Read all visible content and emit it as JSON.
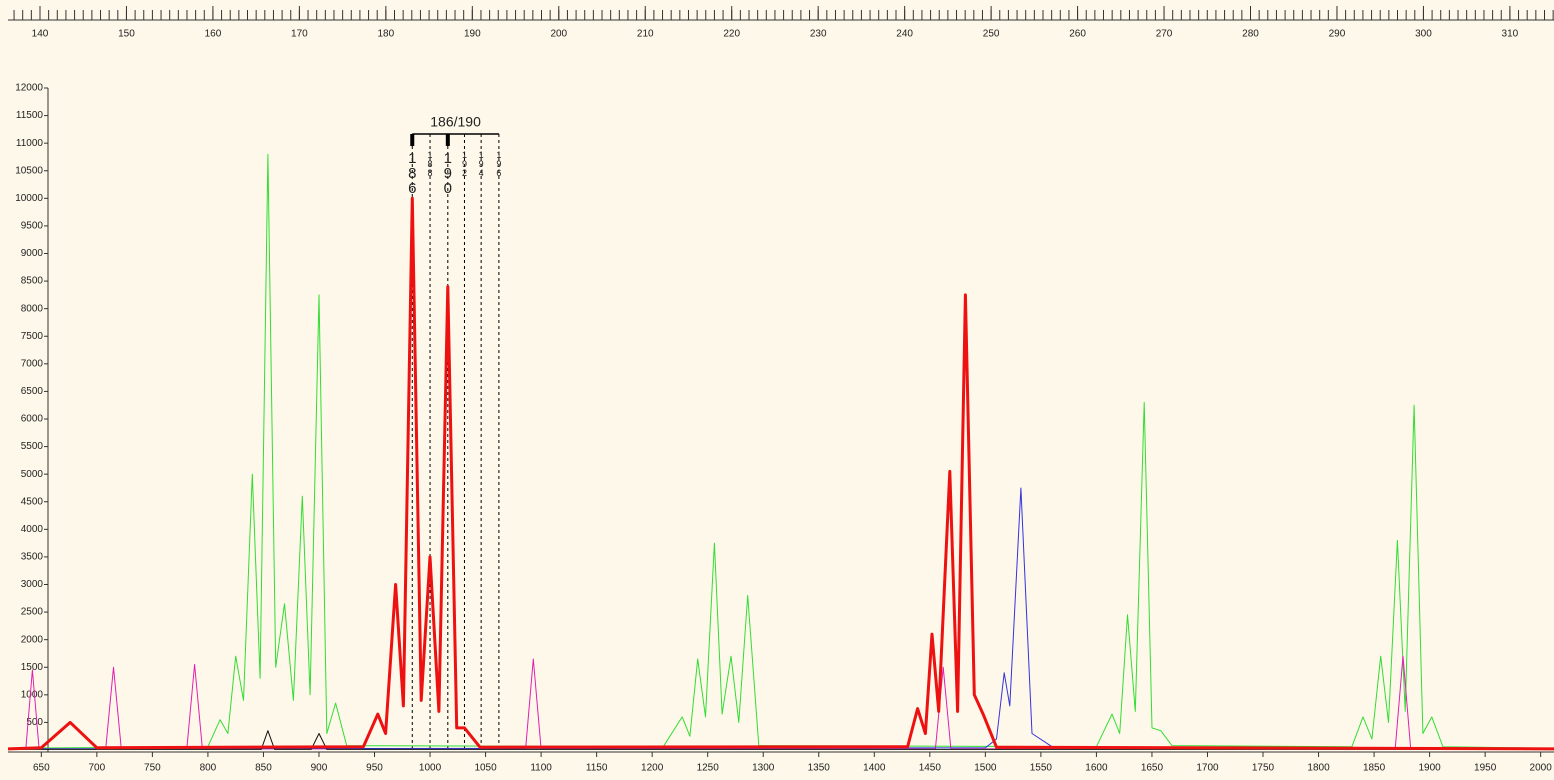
{
  "chart_data": {
    "type": "line",
    "size_ruler": {
      "xlim": [
        136.3,
        315.1
      ],
      "xticks": [
        140,
        150,
        160,
        170,
        180,
        190,
        200,
        210,
        220,
        230,
        240,
        250,
        260,
        270,
        280,
        290,
        300,
        310
      ]
    },
    "xlim": [
      620,
      2012
    ],
    "xticks": [
      650,
      700,
      750,
      800,
      850,
      900,
      950,
      1000,
      1050,
      1100,
      1150,
      1200,
      1250,
      1300,
      1350,
      1400,
      1450,
      1500,
      1550,
      1600,
      1650,
      1700,
      1750,
      1800,
      1850,
      1900,
      1950,
      2000
    ],
    "ylim": [
      0,
      12000
    ],
    "yticks": [
      500,
      1000,
      1500,
      2000,
      2500,
      3000,
      3500,
      4000,
      4500,
      5000,
      5500,
      6000,
      6500,
      7000,
      7500,
      8000,
      8500,
      9000,
      9500,
      10000,
      10500,
      11000,
      11500,
      12000
    ],
    "genotype": "186/190",
    "bins": [
      {
        "label": "186",
        "x": 984,
        "called": true
      },
      {
        "label": "188",
        "x": 1000,
        "called": false
      },
      {
        "label": "190",
        "x": 1016,
        "called": true
      },
      {
        "label": "192",
        "x": 1031,
        "called": false
      },
      {
        "label": "194",
        "x": 1046,
        "called": false
      },
      {
        "label": "196",
        "x": 1062,
        "called": false
      }
    ],
    "series": [
      {
        "color": "#33dd33",
        "width": 1,
        "x": [
          620,
          800,
          811,
          818,
          825,
          832,
          840,
          847,
          854,
          861,
          869,
          877,
          885,
          892,
          900,
          907,
          915,
          925,
          1210,
          1227,
          1234,
          1241,
          1248,
          1256,
          1263,
          1271,
          1278,
          1286,
          1296,
          1600,
          1614,
          1621,
          1628,
          1635,
          1643,
          1650,
          1658,
          1668,
          1830,
          1840,
          1848,
          1856,
          1863,
          1871,
          1878,
          1886,
          1894,
          1902,
          1912,
          2012
        ],
        "values": [
          30,
          60,
          550,
          300,
          1700,
          900,
          5000,
          1300,
          10800,
          1500,
          2650,
          900,
          4600,
          1000,
          8250,
          300,
          850,
          80,
          60,
          600,
          250,
          1650,
          600,
          3750,
          650,
          1700,
          500,
          2800,
          80,
          60,
          650,
          300,
          2450,
          700,
          6300,
          400,
          350,
          80,
          60,
          600,
          200,
          1700,
          500,
          3800,
          700,
          6250,
          300,
          600,
          60,
          30
        ]
      },
      {
        "color": "#e020b0",
        "width": 1,
        "x": [
          620,
          636,
          642,
          648,
          708,
          715,
          722,
          781,
          788,
          795,
          1086,
          1093,
          1100,
          1455,
          1462,
          1469,
          1869,
          1876,
          1883,
          2012
        ],
        "values": [
          20,
          20,
          1450,
          20,
          20,
          1500,
          20,
          20,
          1550,
          20,
          20,
          1650,
          20,
          20,
          1500,
          20,
          20,
          1700,
          20,
          20
        ]
      },
      {
        "color": "#3333dd",
        "width": 1,
        "x": [
          620,
          1500,
          1510,
          1517,
          1522,
          1532,
          1542,
          1560,
          2012
        ],
        "values": [
          20,
          40,
          200,
          1400,
          800,
          4750,
          300,
          60,
          20
        ]
      },
      {
        "color": "#111111",
        "width": 1,
        "x": [
          620,
          848,
          854,
          860,
          893,
          900,
          907,
          2012
        ],
        "values": [
          10,
          10,
          350,
          10,
          10,
          300,
          10,
          10
        ]
      },
      {
        "color": "#ee1111",
        "width": 3,
        "x": [
          620,
          650,
          676,
          700,
          940,
          953,
          960,
          969,
          976,
          984,
          992,
          1000,
          1008,
          1016,
          1024,
          1031,
          1045,
          1430,
          1439,
          1446,
          1452,
          1458,
          1468,
          1475,
          1482,
          1490,
          1498,
          1510,
          2012
        ],
        "values": [
          20,
          40,
          500,
          40,
          60,
          650,
          300,
          3000,
          800,
          10000,
          900,
          3500,
          700,
          8400,
          400,
          400,
          50,
          60,
          750,
          300,
          2100,
          700,
          5050,
          700,
          8250,
          1000,
          650,
          50,
          20
        ]
      }
    ]
  }
}
